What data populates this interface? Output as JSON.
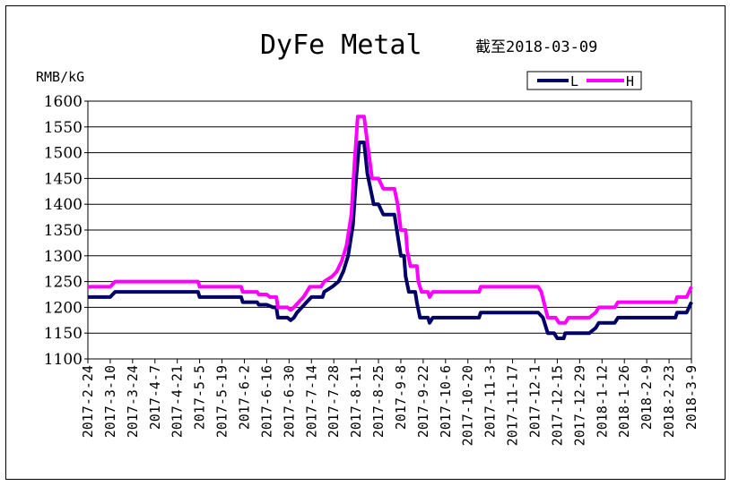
{
  "chart_data": {
    "type": "line",
    "title": "DyFe Metal",
    "subtitle": "截至2018-03-09",
    "ylabel": "RMB/kG",
    "ylim": [
      1100,
      1600
    ],
    "yticks": [
      1100,
      1150,
      1200,
      1250,
      1300,
      1350,
      1400,
      1450,
      1500,
      1550,
      1600
    ],
    "xticks": [
      "2017-2-24",
      "2017-3-10",
      "2017-3-24",
      "2017-4-7",
      "2017-4-21",
      "2017-5-5",
      "2017-5-19",
      "2017-6-2",
      "2017-6-16",
      "2017-6-30",
      "2017-7-14",
      "2017-7-28",
      "2017-8-11",
      "2017-8-25",
      "2017-9-8",
      "2017-9-22",
      "2017-10-6",
      "2017-10-20",
      "2017-11-3",
      "2017-11-17",
      "2017-12-1",
      "2017-12-15",
      "2017-12-29",
      "2018-1-12",
      "2018-1-26",
      "2018-2-9",
      "2018-2-23",
      "2018-3-9"
    ],
    "grid": true,
    "legend_position": "top-right",
    "series": [
      {
        "name": "L",
        "color": "#000066",
        "points": [
          [
            "2017-2-24",
            1220
          ],
          [
            "2017-3-10",
            1220
          ],
          [
            "2017-3-13",
            1230
          ],
          [
            "2017-4-21",
            1230
          ],
          [
            "2017-5-4",
            1230
          ],
          [
            "2017-5-5",
            1220
          ],
          [
            "2017-5-31",
            1220
          ],
          [
            "2017-6-1",
            1210
          ],
          [
            "2017-6-10",
            1210
          ],
          [
            "2017-6-11",
            1205
          ],
          [
            "2017-6-16",
            1205
          ],
          [
            "2017-6-20",
            1200
          ],
          [
            "2017-6-22",
            1200
          ],
          [
            "2017-6-23",
            1180
          ],
          [
            "2017-6-29",
            1180
          ],
          [
            "2017-7-1",
            1175
          ],
          [
            "2017-7-3",
            1180
          ],
          [
            "2017-7-5",
            1190
          ],
          [
            "2017-7-8",
            1200
          ],
          [
            "2017-7-11",
            1210
          ],
          [
            "2017-7-14",
            1220
          ],
          [
            "2017-7-21",
            1220
          ],
          [
            "2017-7-22",
            1230
          ],
          [
            "2017-7-27",
            1240
          ],
          [
            "2017-7-31",
            1250
          ],
          [
            "2017-8-3",
            1270
          ],
          [
            "2017-8-6",
            1300
          ],
          [
            "2017-8-9",
            1360
          ],
          [
            "2017-8-11",
            1450
          ],
          [
            "2017-8-13",
            1520
          ],
          [
            "2017-8-16",
            1520
          ],
          [
            "2017-8-18",
            1460
          ],
          [
            "2017-8-22",
            1400
          ],
          [
            "2017-8-25",
            1400
          ],
          [
            "2017-8-28",
            1380
          ],
          [
            "2017-9-4",
            1380
          ],
          [
            "2017-9-6",
            1340
          ],
          [
            "2017-9-8",
            1300
          ],
          [
            "2017-9-10",
            1300
          ],
          [
            "2017-9-11",
            1260
          ],
          [
            "2017-9-13",
            1230
          ],
          [
            "2017-9-17",
            1230
          ],
          [
            "2017-9-18",
            1210
          ],
          [
            "2017-9-20",
            1180
          ],
          [
            "2017-9-25",
            1180
          ],
          [
            "2017-9-26",
            1170
          ],
          [
            "2017-9-28",
            1180
          ],
          [
            "2017-10-27",
            1180
          ],
          [
            "2017-10-28",
            1190
          ],
          [
            "2017-12-3",
            1190
          ],
          [
            "2017-12-6",
            1180
          ],
          [
            "2017-12-9",
            1150
          ],
          [
            "2017-12-13",
            1150
          ],
          [
            "2017-12-15",
            1140
          ],
          [
            "2017-12-19",
            1140
          ],
          [
            "2017-12-20",
            1150
          ],
          [
            "2018-1-4",
            1150
          ],
          [
            "2018-1-8",
            1160
          ],
          [
            "2018-1-10",
            1170
          ],
          [
            "2018-1-20",
            1170
          ],
          [
            "2018-1-22",
            1180
          ],
          [
            "2018-2-27",
            1180
          ],
          [
            "2018-2-28",
            1190
          ],
          [
            "2018-3-6",
            1190
          ],
          [
            "2018-3-9",
            1210
          ]
        ]
      },
      {
        "name": "H",
        "color": "#ff00ff",
        "points": [
          [
            "2017-2-24",
            1240
          ],
          [
            "2017-3-10",
            1240
          ],
          [
            "2017-3-13",
            1250
          ],
          [
            "2017-5-4",
            1250
          ],
          [
            "2017-5-5",
            1240
          ],
          [
            "2017-5-31",
            1240
          ],
          [
            "2017-6-1",
            1230
          ],
          [
            "2017-6-10",
            1230
          ],
          [
            "2017-6-11",
            1225
          ],
          [
            "2017-6-16",
            1225
          ],
          [
            "2017-6-18",
            1220
          ],
          [
            "2017-6-22",
            1220
          ],
          [
            "2017-6-23",
            1200
          ],
          [
            "2017-6-29",
            1200
          ],
          [
            "2017-7-1",
            1195
          ],
          [
            "2017-7-3",
            1200
          ],
          [
            "2017-7-6",
            1210
          ],
          [
            "2017-7-9",
            1220
          ],
          [
            "2017-7-13",
            1240
          ],
          [
            "2017-7-20",
            1240
          ],
          [
            "2017-7-22",
            1250
          ],
          [
            "2017-7-27",
            1260
          ],
          [
            "2017-7-30",
            1270
          ],
          [
            "2017-8-2",
            1290
          ],
          [
            "2017-8-5",
            1320
          ],
          [
            "2017-8-8",
            1380
          ],
          [
            "2017-8-10",
            1480
          ],
          [
            "2017-8-12",
            1570
          ],
          [
            "2017-8-16",
            1570
          ],
          [
            "2017-8-18",
            1520
          ],
          [
            "2017-8-21",
            1450
          ],
          [
            "2017-8-25",
            1450
          ],
          [
            "2017-8-28",
            1430
          ],
          [
            "2017-9-4",
            1430
          ],
          [
            "2017-9-6",
            1400
          ],
          [
            "2017-9-8",
            1350
          ],
          [
            "2017-9-11",
            1350
          ],
          [
            "2017-9-12",
            1310
          ],
          [
            "2017-9-14",
            1280
          ],
          [
            "2017-9-18",
            1280
          ],
          [
            "2017-9-19",
            1250
          ],
          [
            "2017-9-21",
            1230
          ],
          [
            "2017-9-25",
            1230
          ],
          [
            "2017-9-26",
            1220
          ],
          [
            "2017-9-28",
            1230
          ],
          [
            "2017-10-27",
            1230
          ],
          [
            "2017-10-28",
            1240
          ],
          [
            "2017-12-3",
            1240
          ],
          [
            "2017-12-5",
            1230
          ],
          [
            "2017-12-9",
            1180
          ],
          [
            "2017-12-14",
            1180
          ],
          [
            "2017-12-16",
            1170
          ],
          [
            "2017-12-20",
            1170
          ],
          [
            "2017-12-22",
            1180
          ],
          [
            "2018-1-4",
            1180
          ],
          [
            "2018-1-8",
            1190
          ],
          [
            "2018-1-10",
            1200
          ],
          [
            "2018-1-20",
            1200
          ],
          [
            "2018-1-22",
            1210
          ],
          [
            "2018-2-27",
            1210
          ],
          [
            "2018-2-28",
            1220
          ],
          [
            "2018-3-6",
            1220
          ],
          [
            "2018-3-9",
            1240
          ]
        ]
      }
    ]
  }
}
